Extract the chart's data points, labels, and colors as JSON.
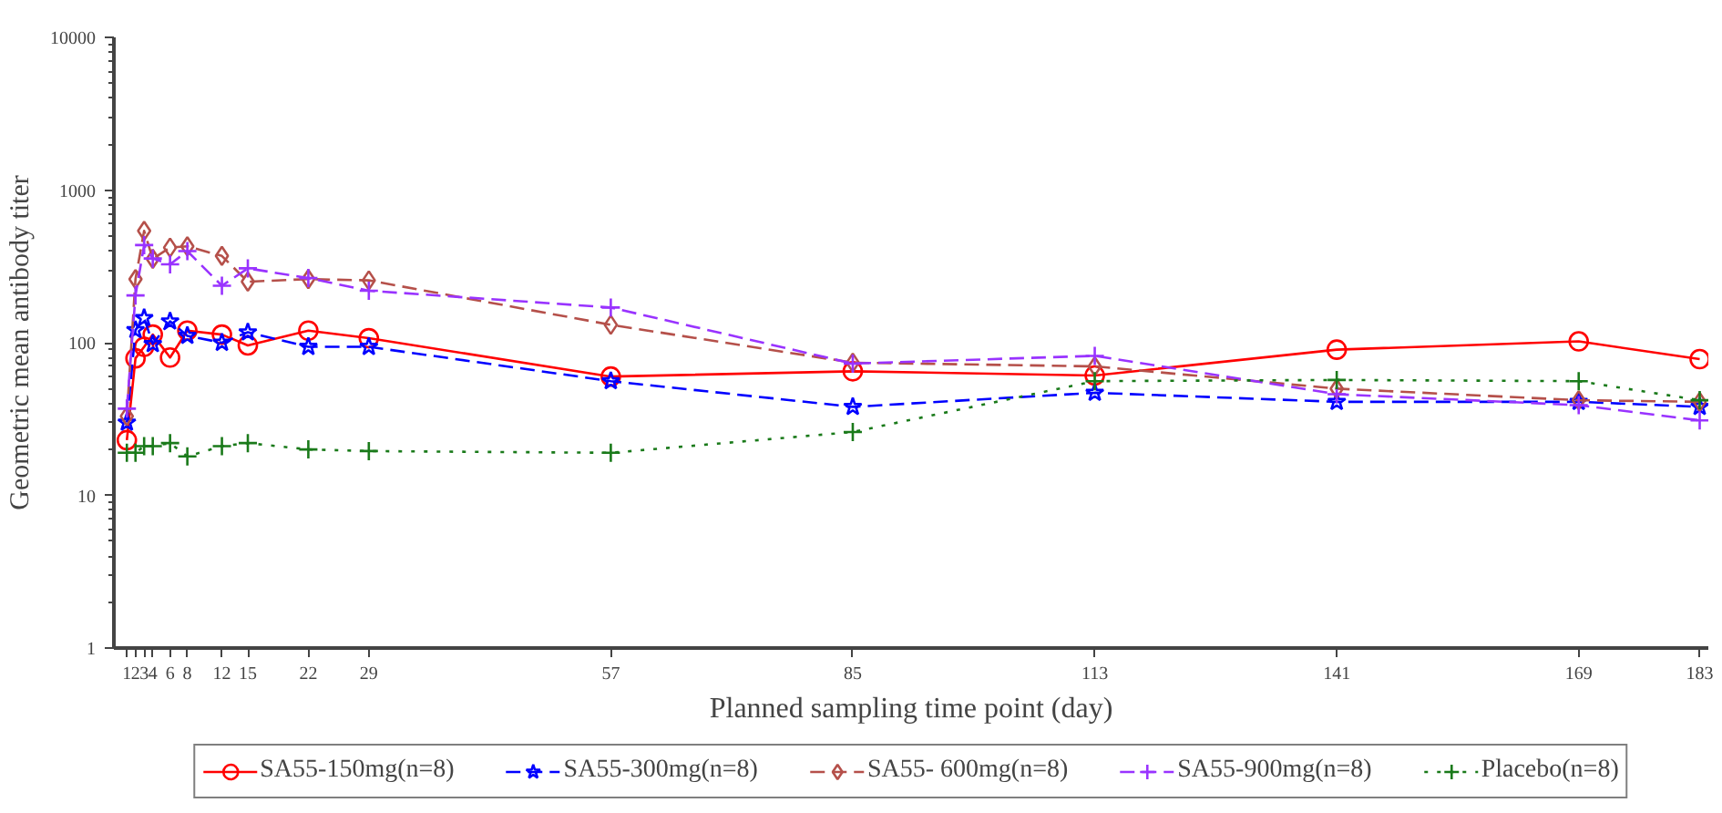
{
  "chart_data": {
    "type": "line",
    "xlabel": "Planned sampling time point (day)",
    "ylabel": "Geometric mean antibody titer",
    "x": [
      1,
      2,
      3,
      4,
      6,
      8,
      12,
      15,
      22,
      29,
      57,
      85,
      113,
      141,
      169,
      183
    ],
    "xlim": [
      -0.5,
      184
    ],
    "xticks": [
      1,
      2,
      3,
      4,
      6,
      8,
      12,
      15,
      22,
      29,
      57,
      85,
      113,
      141,
      169,
      183
    ],
    "ylim": [
      1,
      10000
    ],
    "yticks": [
      1,
      10,
      100,
      1000,
      10000
    ],
    "log": "y",
    "grid": false,
    "legend": "bottom",
    "series": [
      {
        "name": "SA55-150mg(n=8)",
        "color": "#ff0000",
        "marker": "circle",
        "line_style": "solid",
        "values": [
          23,
          79,
          94,
          113,
          80,
          120,
          113,
          96,
          120,
          107,
          60,
          65,
          61,
          90,
          102,
          78
        ]
      },
      {
        "name": "SA55-300mg(n=8)",
        "color": "#0000ff",
        "marker": "star",
        "line_style": "dashed",
        "values": [
          30,
          121,
          145,
          98,
          138,
          111,
          100,
          117,
          94,
          94,
          56,
          38,
          47,
          41,
          41,
          38
        ]
      },
      {
        "name": "SA55- 600mg(n=8)",
        "color": "#b5504a",
        "marker": "diamond",
        "line_style": "dashed",
        "values": [
          33,
          261,
          540,
          354,
          420,
          428,
          370,
          251,
          261,
          256,
          131,
          74,
          70,
          50,
          42,
          41
        ]
      },
      {
        "name": "SA55-900mg(n=8)",
        "color": "#9933ff",
        "marker": "cross",
        "line_style": "dashed",
        "values": [
          37,
          204,
          436,
          356,
          326,
          398,
          236,
          307,
          265,
          219,
          170,
          73,
          82,
          46,
          39,
          31
        ]
      },
      {
        "name": "Placebo(n=8)",
        "color": "#1a7a1a",
        "marker": "cross",
        "line_style": "dotted",
        "values": [
          19,
          19,
          21,
          21,
          22,
          18,
          21,
          22,
          20,
          19.5,
          19,
          26,
          56,
          57,
          56,
          42
        ]
      }
    ]
  }
}
